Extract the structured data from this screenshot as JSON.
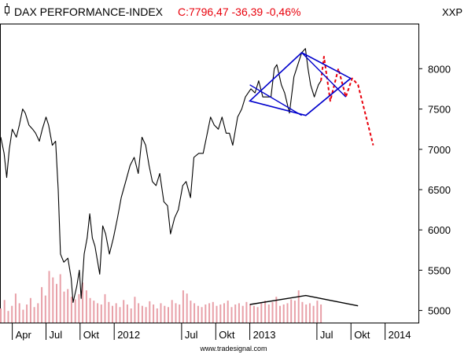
{
  "header": {
    "symbol_icon": "candlestick-icon",
    "title": "DAX PERFORMANCE-INDEX",
    "quote": "C:7796,47 -36,39 -0,46%",
    "exchange": "XXP",
    "quote_color": "#e8000b",
    "title_color": "#000000"
  },
  "footer": {
    "watermark": "www.tradesignal.com"
  },
  "chart_data": {
    "type": "line",
    "title": "DAX PERFORMANCE-INDEX",
    "xlabel": "",
    "ylabel": "",
    "xlim": [
      "2011-03-01",
      "2014-04-01"
    ],
    "ylim": [
      4850,
      8550
    ],
    "y_ticks": [
      5000,
      5500,
      6000,
      6500,
      7000,
      7500,
      8000
    ],
    "y_tick_labels": [
      "5000",
      "5500",
      "6000",
      "6500",
      "7000",
      "7500",
      "8000"
    ],
    "x_ticks": [
      {
        "date": "2011-04-01",
        "label": "Apr"
      },
      {
        "date": "2011-07-01",
        "label": "Jul"
      },
      {
        "date": "2011-10-01",
        "label": "Okt"
      },
      {
        "date": "2012-01-01",
        "label": "2012"
      },
      {
        "date": "2012-07-01",
        "label": "Jul"
      },
      {
        "date": "2012-10-01",
        "label": "Okt"
      },
      {
        "date": "2013-01-01",
        "label": "2013"
      },
      {
        "date": "2013-07-01",
        "label": "Jul"
      },
      {
        "date": "2013-10-01",
        "label": "Okt"
      },
      {
        "date": "2014-01-01",
        "label": "2014"
      }
    ],
    "grid": false,
    "legend": "none",
    "series": [
      {
        "color": "#000000",
        "points": [
          [
            "2011-03-01",
            7150
          ],
          [
            "2011-03-10",
            6950
          ],
          [
            "2011-03-17",
            6650
          ],
          [
            "2011-03-24",
            7000
          ],
          [
            "2011-04-01",
            7250
          ],
          [
            "2011-04-12",
            7150
          ],
          [
            "2011-04-20",
            7300
          ],
          [
            "2011-04-29",
            7500
          ],
          [
            "2011-05-06",
            7450
          ],
          [
            "2011-05-16",
            7300
          ],
          [
            "2011-05-26",
            7250
          ],
          [
            "2011-06-03",
            7200
          ],
          [
            "2011-06-13",
            7100
          ],
          [
            "2011-06-21",
            7250
          ],
          [
            "2011-07-01",
            7400
          ],
          [
            "2011-07-08",
            7300
          ],
          [
            "2011-07-18",
            7050
          ],
          [
            "2011-07-27",
            7100
          ],
          [
            "2011-08-03",
            6500
          ],
          [
            "2011-08-09",
            5700
          ],
          [
            "2011-08-18",
            5600
          ],
          [
            "2011-08-29",
            5650
          ],
          [
            "2011-09-07",
            5400
          ],
          [
            "2011-09-12",
            5100
          ],
          [
            "2011-09-22",
            5300
          ],
          [
            "2011-09-29",
            5500
          ],
          [
            "2011-10-04",
            5150
          ],
          [
            "2011-10-12",
            5700
          ],
          [
            "2011-10-20",
            5900
          ],
          [
            "2011-10-27",
            6200
          ],
          [
            "2011-11-03",
            5900
          ],
          [
            "2011-11-10",
            5800
          ],
          [
            "2011-11-23",
            5450
          ],
          [
            "2011-12-01",
            6050
          ],
          [
            "2011-12-09",
            5950
          ],
          [
            "2011-12-19",
            5700
          ],
          [
            "2011-12-30",
            5900
          ],
          [
            "2012-01-10",
            6150
          ],
          [
            "2012-01-20",
            6400
          ],
          [
            "2012-02-01",
            6600
          ],
          [
            "2012-02-13",
            6800
          ],
          [
            "2012-02-24",
            6900
          ],
          [
            "2012-03-06",
            6700
          ],
          [
            "2012-03-16",
            7150
          ],
          [
            "2012-03-26",
            7050
          ],
          [
            "2012-04-04",
            6800
          ],
          [
            "2012-04-13",
            6600
          ],
          [
            "2012-04-23",
            6550
          ],
          [
            "2012-05-03",
            6700
          ],
          [
            "2012-05-14",
            6350
          ],
          [
            "2012-05-24",
            6300
          ],
          [
            "2012-06-01",
            5950
          ],
          [
            "2012-06-12",
            6150
          ],
          [
            "2012-06-22",
            6250
          ],
          [
            "2012-07-04",
            6550
          ],
          [
            "2012-07-13",
            6600
          ],
          [
            "2012-07-25",
            6400
          ],
          [
            "2012-08-03",
            6900
          ],
          [
            "2012-08-16",
            6950
          ],
          [
            "2012-08-28",
            6950
          ],
          [
            "2012-09-06",
            7150
          ],
          [
            "2012-09-17",
            7400
          ],
          [
            "2012-09-27",
            7300
          ],
          [
            "2012-10-08",
            7250
          ],
          [
            "2012-10-18",
            7400
          ],
          [
            "2012-10-29",
            7200
          ],
          [
            "2012-11-07",
            7200
          ],
          [
            "2012-11-16",
            7050
          ],
          [
            "2012-11-29",
            7400
          ],
          [
            "2012-12-10",
            7500
          ],
          [
            "2012-12-20",
            7650
          ],
          [
            "2013-01-04",
            7750
          ],
          [
            "2013-01-15",
            7700
          ],
          [
            "2013-01-25",
            7850
          ],
          [
            "2013-02-05",
            7650
          ],
          [
            "2013-02-15",
            7650
          ],
          [
            "2013-02-27",
            7650
          ],
          [
            "2013-03-08",
            8000
          ],
          [
            "2013-03-15",
            8050
          ],
          [
            "2013-03-27",
            7800
          ],
          [
            "2013-04-05",
            7700
          ],
          [
            "2013-04-18",
            7450
          ],
          [
            "2013-04-30",
            7900
          ],
          [
            "2013-05-07",
            8000
          ],
          [
            "2013-05-21",
            8200
          ],
          [
            "2013-05-31",
            8250
          ],
          [
            "2013-06-07",
            8000
          ],
          [
            "2013-06-14",
            7800
          ],
          [
            "2013-06-24",
            7650
          ],
          [
            "2013-07-05",
            7800
          ],
          [
            "2013-07-12",
            7850
          ]
        ]
      },
      {
        "color": "#e8000b",
        "line_style": "dashed",
        "points": [
          [
            "2013-07-12",
            7850
          ],
          [
            "2013-07-20",
            8150
          ],
          [
            "2013-08-06",
            7600
          ],
          [
            "2013-08-28",
            8000
          ],
          [
            "2013-09-17",
            7650
          ],
          [
            "2013-10-04",
            7880
          ],
          [
            "2013-10-20",
            7800
          ],
          [
            "2013-11-30",
            7050
          ]
        ]
      }
    ],
    "annotations": [
      {
        "type": "polygon",
        "color": "#0000cc",
        "points": [
          [
            "2013-01-01",
            7600
          ],
          [
            "2013-05-21",
            8200
          ],
          [
            "2013-09-30",
            7880
          ],
          [
            "2013-06-01",
            7420
          ]
        ]
      },
      {
        "type": "line",
        "color": "#0000cc",
        "points": [
          [
            "2013-01-01",
            7800
          ],
          [
            "2013-05-21",
            7420
          ]
        ]
      },
      {
        "type": "line",
        "color": "#0000cc",
        "points": [
          [
            "2013-05-21",
            8200
          ],
          [
            "2013-09-17",
            7650
          ]
        ]
      },
      {
        "type": "line",
        "color": "#0000cc",
        "points": [
          [
            "2013-06-01",
            7420
          ],
          [
            "2013-09-30",
            7880
          ]
        ]
      }
    ],
    "volume": {
      "color": "#e8a0a8",
      "scale_max": 100,
      "bars_start": "2011-03-01",
      "bars_end": "2013-07-12",
      "values": [
        22,
        35,
        18,
        26,
        45,
        30,
        20,
        28,
        38,
        24,
        30,
        55,
        42,
        80,
        70,
        60,
        75,
        48,
        52,
        40,
        36,
        44,
        62,
        50,
        38,
        34,
        30,
        28,
        44,
        32,
        26,
        30,
        24,
        35,
        28,
        22,
        40,
        30,
        26,
        24,
        33,
        28,
        22,
        30,
        26,
        24,
        35,
        30,
        28,
        50,
        45,
        34,
        30,
        26,
        24,
        28,
        30,
        32,
        26,
        28,
        30,
        34,
        24,
        28,
        30,
        26,
        32,
        28,
        26,
        24,
        30,
        34,
        28,
        32,
        40,
        26,
        28,
        30,
        36,
        34,
        50,
        32,
        28,
        30,
        26,
        34,
        28
      ],
      "line": {
        "color": "#000000",
        "points": [
          [
            "2013-01-01",
            28
          ],
          [
            "2013-06-01",
            42
          ],
          [
            "2013-10-20",
            26
          ]
        ]
      }
    }
  }
}
